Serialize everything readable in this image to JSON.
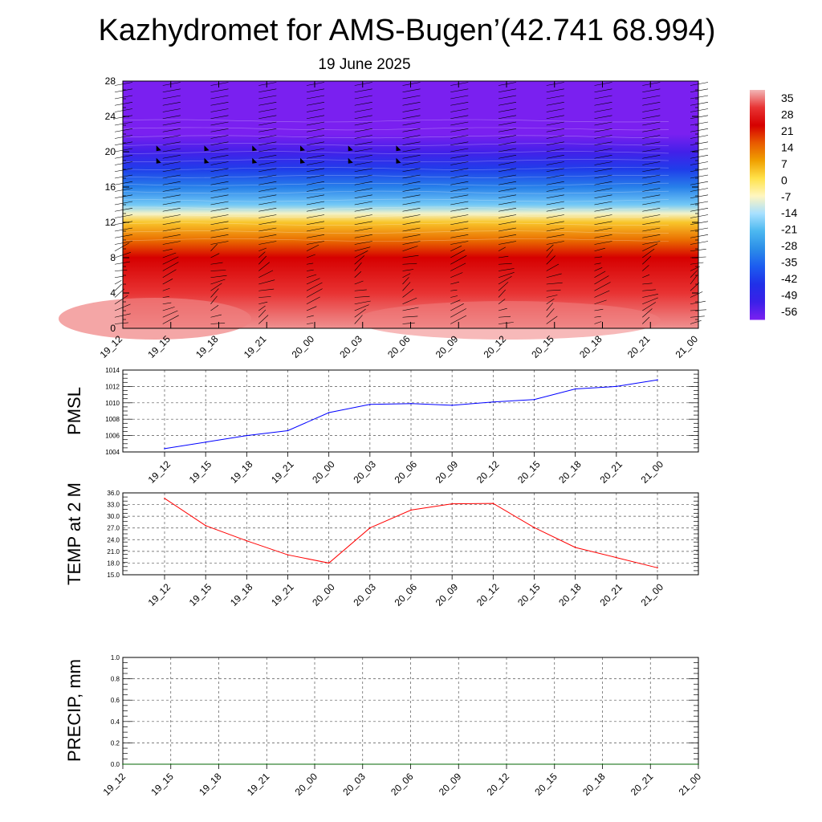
{
  "title": "Kazhydromet for AMS-Bugen’(42.741 68.994)",
  "subtitle": "19 June 2025",
  "colorbar": {
    "labels": [
      "35",
      "28",
      "21",
      "14",
      "7",
      "0",
      "-7",
      "-14",
      "-21",
      "-28",
      "-35",
      "-42",
      "-49",
      "-56"
    ],
    "stops": [
      "#f2b6b6",
      "#e83333",
      "#d60000",
      "#e85a00",
      "#f0a000",
      "#ffe24a",
      "#fff6c0",
      "#a8e0ff",
      "#4cb8f0",
      "#2c8ee8",
      "#1c5cf0",
      "#2030e8",
      "#3a20e8",
      "#7a20f0"
    ]
  },
  "chart_data": [
    {
      "type": "heatmap",
      "name": "vertical-cross-section",
      "x_ticks": [
        "19_12",
        "19_15",
        "19_18",
        "19_21",
        "20_00",
        "20_03",
        "20_06",
        "20_09",
        "20_12",
        "20_15",
        "20_18",
        "20_21",
        "21_00"
      ],
      "y_ticks": [
        "0",
        "4",
        "8",
        "12",
        "16",
        "20",
        "24",
        "28"
      ],
      "ylim": [
        0,
        28
      ],
      "temperature_profile": [
        {
          "level": 0,
          "value": 33
        },
        {
          "level": 4,
          "value": 28
        },
        {
          "level": 8,
          "value": 21
        },
        {
          "level": 10,
          "value": 12
        },
        {
          "level": 12,
          "value": 3
        },
        {
          "level": 13,
          "value": -8
        },
        {
          "level": 14,
          "value": -18
        },
        {
          "level": 16,
          "value": -30
        },
        {
          "level": 18,
          "value": -40
        },
        {
          "level": 20,
          "value": -50
        },
        {
          "level": 22,
          "value": -56
        },
        {
          "level": 28,
          "value": -58
        }
      ]
    },
    {
      "type": "line",
      "name": "pmsl",
      "ylabel": "PMSL",
      "x_ticks": [
        "19_12",
        "19_15",
        "19_18",
        "19_21",
        "20_00",
        "20_03",
        "20_06",
        "20_09",
        "20_12",
        "20_15",
        "20_18",
        "20_21",
        "21_00"
      ],
      "y_ticks": [
        "1004",
        "1006",
        "1008",
        "1010",
        "1012",
        "1014"
      ],
      "ylim": [
        1004,
        1014
      ],
      "series": [
        {
          "color": "#0000ff",
          "values": [
            1004.4,
            1005.2,
            1006.0,
            1006.6,
            1008.8,
            1009.8,
            1009.9,
            1009.7,
            1010.1,
            1010.4,
            1011.7,
            1012.0,
            1012.8
          ]
        }
      ]
    },
    {
      "type": "line",
      "name": "temp-2m",
      "ylabel": "TEMP at 2 M",
      "x_ticks": [
        "19_12",
        "19_15",
        "19_18",
        "19_21",
        "20_00",
        "20_03",
        "20_06",
        "20_09",
        "20_12",
        "20_15",
        "20_18",
        "20_21",
        "21_00"
      ],
      "y_ticks": [
        "15.0",
        "18.0",
        "21.0",
        "24.0",
        "27.0",
        "30.0",
        "33.0",
        "36.0"
      ],
      "ylim": [
        15,
        36
      ],
      "series": [
        {
          "color": "#ff0000",
          "values": [
            34.6,
            27.6,
            23.7,
            20.1,
            18.0,
            27.0,
            31.6,
            33.2,
            33.3,
            27.1,
            22.0,
            19.4,
            16.8
          ]
        }
      ]
    },
    {
      "type": "line",
      "name": "precip",
      "ylabel": "PRECIP, mm",
      "x_ticks": [
        "19_12",
        "19_15",
        "19_18",
        "19_21",
        "20_00",
        "20_03",
        "20_06",
        "20_09",
        "20_12",
        "20_15",
        "20_18",
        "20_21",
        "21_00"
      ],
      "y_ticks": [
        "0.0",
        "0.2",
        "0.4",
        "0.6",
        "0.8",
        "1.0"
      ],
      "ylim": [
        0,
        1
      ],
      "series": [
        {
          "color": "#006400",
          "values": [
            0,
            0,
            0,
            0,
            0,
            0,
            0,
            0,
            0,
            0,
            0,
            0,
            0
          ]
        }
      ]
    }
  ]
}
